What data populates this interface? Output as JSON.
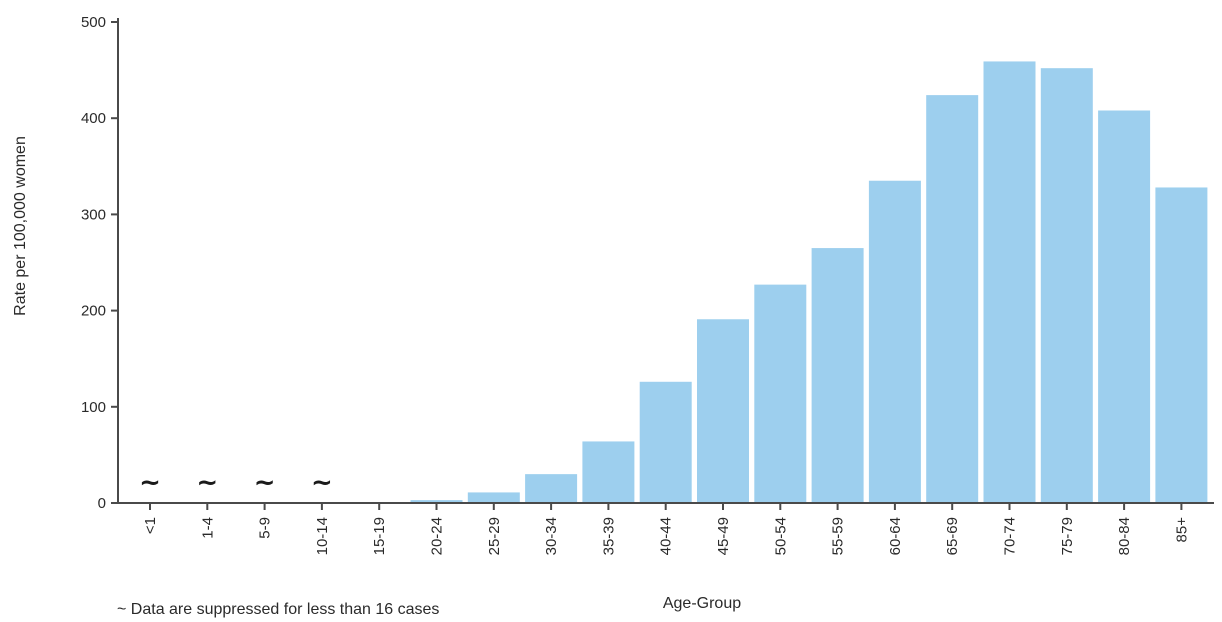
{
  "chart_data": {
    "type": "bar",
    "categories": [
      "<1",
      "1-4",
      "5-9",
      "10-14",
      "15-19",
      "20-24",
      "25-29",
      "30-34",
      "35-39",
      "40-44",
      "45-49",
      "50-54",
      "55-59",
      "60-64",
      "65-69",
      "70-74",
      "75-79",
      "80-84",
      "85+"
    ],
    "values": [
      null,
      null,
      null,
      null,
      0.5,
      3,
      11,
      30,
      64,
      126,
      191,
      227,
      265,
      335,
      424,
      459,
      452,
      408,
      328
    ],
    "suppressed": [
      true,
      true,
      true,
      true,
      false,
      false,
      false,
      false,
      false,
      false,
      false,
      false,
      false,
      false,
      false,
      false,
      false,
      false,
      false
    ],
    "suppressed_marker": "~",
    "xlabel": "Age-Group",
    "ylabel": "Rate per 100,000 women",
    "ylim": [
      0,
      500
    ],
    "yticks": [
      0,
      100,
      200,
      300,
      400,
      500
    ],
    "bar_color": "#9dcfee",
    "grid": false,
    "note": "~ Data are suppressed for less than 16 cases"
  }
}
